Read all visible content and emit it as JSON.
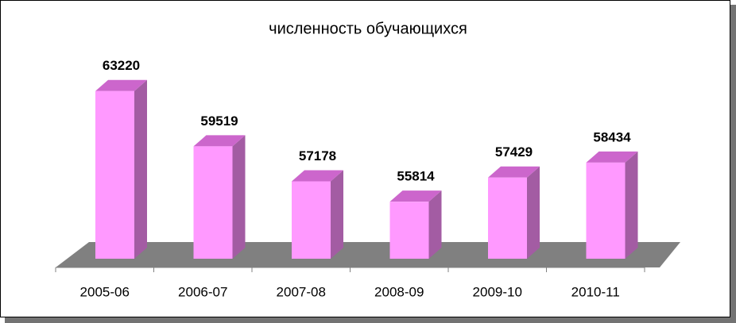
{
  "chart_data": {
    "type": "bar3d",
    "title": "численность обучающихся",
    "categories": [
      "2005-06",
      "2006-07",
      "2007-08",
      "2008-09",
      "2009-10",
      "2010-11"
    ],
    "values": [
      63220,
      59519,
      57178,
      55814,
      57429,
      58434
    ],
    "color": "#ff99ff",
    "ylim": [
      52000,
      64000
    ]
  }
}
